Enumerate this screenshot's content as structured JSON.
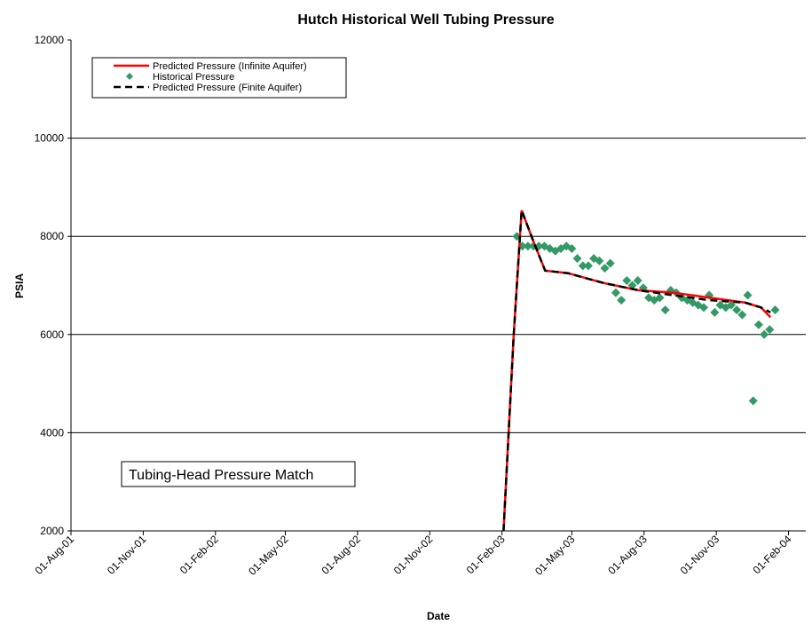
{
  "chart_data": {
    "type": "line",
    "title": "Hutch Historical Well Tubing Pressure",
    "x_label": "Date",
    "y_label": "PSIA",
    "annotation": "Tubing-Head Pressure Match",
    "xlim": [
      "2001-08-01",
      "2004-02-23"
    ],
    "xticks": [
      {
        "value": "2001-08-01",
        "label": "01-Aug-01"
      },
      {
        "value": "2001-11-01",
        "label": "01-Nov-01"
      },
      {
        "value": "2002-02-01",
        "label": "01-Feb-02"
      },
      {
        "value": "2002-05-01",
        "label": "01-May-02"
      },
      {
        "value": "2002-08-01",
        "label": "01-Aug-02"
      },
      {
        "value": "2002-11-01",
        "label": "01-Nov-02"
      },
      {
        "value": "2003-02-01",
        "label": "01-Feb-03"
      },
      {
        "value": "2003-05-01",
        "label": "01-May-03"
      },
      {
        "value": "2003-08-01",
        "label": "01-Aug-03"
      },
      {
        "value": "2003-11-01",
        "label": "01-Nov-03"
      },
      {
        "value": "2004-02-01",
        "label": "01-Feb-04"
      }
    ],
    "ylim": [
      2000,
      12000
    ],
    "yticks": [
      2000,
      4000,
      6000,
      8000,
      10000,
      12000
    ],
    "grid": true,
    "legend": "upper left",
    "series": [
      {
        "name": "Predicted Pressure (Infinite Aquifer)",
        "color": "#ff0000",
        "style": "solid",
        "x": [
          "2003-02-03",
          "2003-02-16",
          "2003-02-26",
          "2003-03-13",
          "2003-03-28",
          "2003-04-26",
          "2003-06-10",
          "2003-07-25",
          "2003-09-08",
          "2003-10-23",
          "2003-12-08",
          "2003-12-28",
          "2004-01-09"
        ],
        "values": [
          2000,
          6000,
          8530,
          7900,
          7300,
          7250,
          7050,
          6900,
          6850,
          6750,
          6650,
          6550,
          6350
        ]
      },
      {
        "name": "Historical Pressure",
        "color": "#339966",
        "style": "marker",
        "x": [
          "2003-02-20",
          "2003-02-27",
          "2003-03-06",
          "2003-03-13",
          "2003-03-20",
          "2003-03-27",
          "2003-04-03",
          "2003-04-10",
          "2003-04-17",
          "2003-04-24",
          "2003-05-01",
          "2003-05-08",
          "2003-05-15",
          "2003-05-22",
          "2003-05-29",
          "2003-06-05",
          "2003-06-12",
          "2003-06-19",
          "2003-06-26",
          "2003-07-03",
          "2003-07-10",
          "2003-07-17",
          "2003-07-24",
          "2003-07-31",
          "2003-08-07",
          "2003-08-14",
          "2003-08-21",
          "2003-08-28",
          "2003-09-04",
          "2003-09-11",
          "2003-09-18",
          "2003-09-25",
          "2003-10-02",
          "2003-10-09",
          "2003-10-16",
          "2003-10-23",
          "2003-10-30",
          "2003-11-06",
          "2003-11-13",
          "2003-11-20",
          "2003-11-27",
          "2003-12-04",
          "2003-12-11",
          "2003-12-18",
          "2003-12-25",
          "2004-01-01",
          "2004-01-08",
          "2004-01-15"
        ],
        "values": [
          8000,
          7800,
          7800,
          7800,
          7800,
          7800,
          7750,
          7700,
          7750,
          7800,
          7750,
          7550,
          7400,
          7400,
          7550,
          7500,
          7350,
          7450,
          6850,
          6700,
          7100,
          7000,
          7100,
          6950,
          6750,
          6700,
          6750,
          6500,
          6900,
          6850,
          6750,
          6700,
          6650,
          6600,
          6550,
          6800,
          6450,
          6600,
          6550,
          6600,
          6500,
          6400,
          6800,
          4650,
          6200,
          6000,
          6100,
          6500
        ]
      },
      {
        "name": "Predicted Pressure (Finite Aquifer)",
        "color": "#000000",
        "style": "dashed",
        "x": [
          "2003-02-03",
          "2003-02-16",
          "2003-02-26",
          "2003-03-13",
          "2003-03-28",
          "2003-04-26",
          "2003-06-10",
          "2003-07-25",
          "2003-09-08",
          "2003-10-23",
          "2003-12-08",
          "2003-12-28",
          "2004-01-09"
        ],
        "values": [
          2000,
          6000,
          8530,
          7900,
          7300,
          7250,
          7050,
          6900,
          6800,
          6700,
          6650,
          6550,
          6450
        ]
      }
    ]
  }
}
